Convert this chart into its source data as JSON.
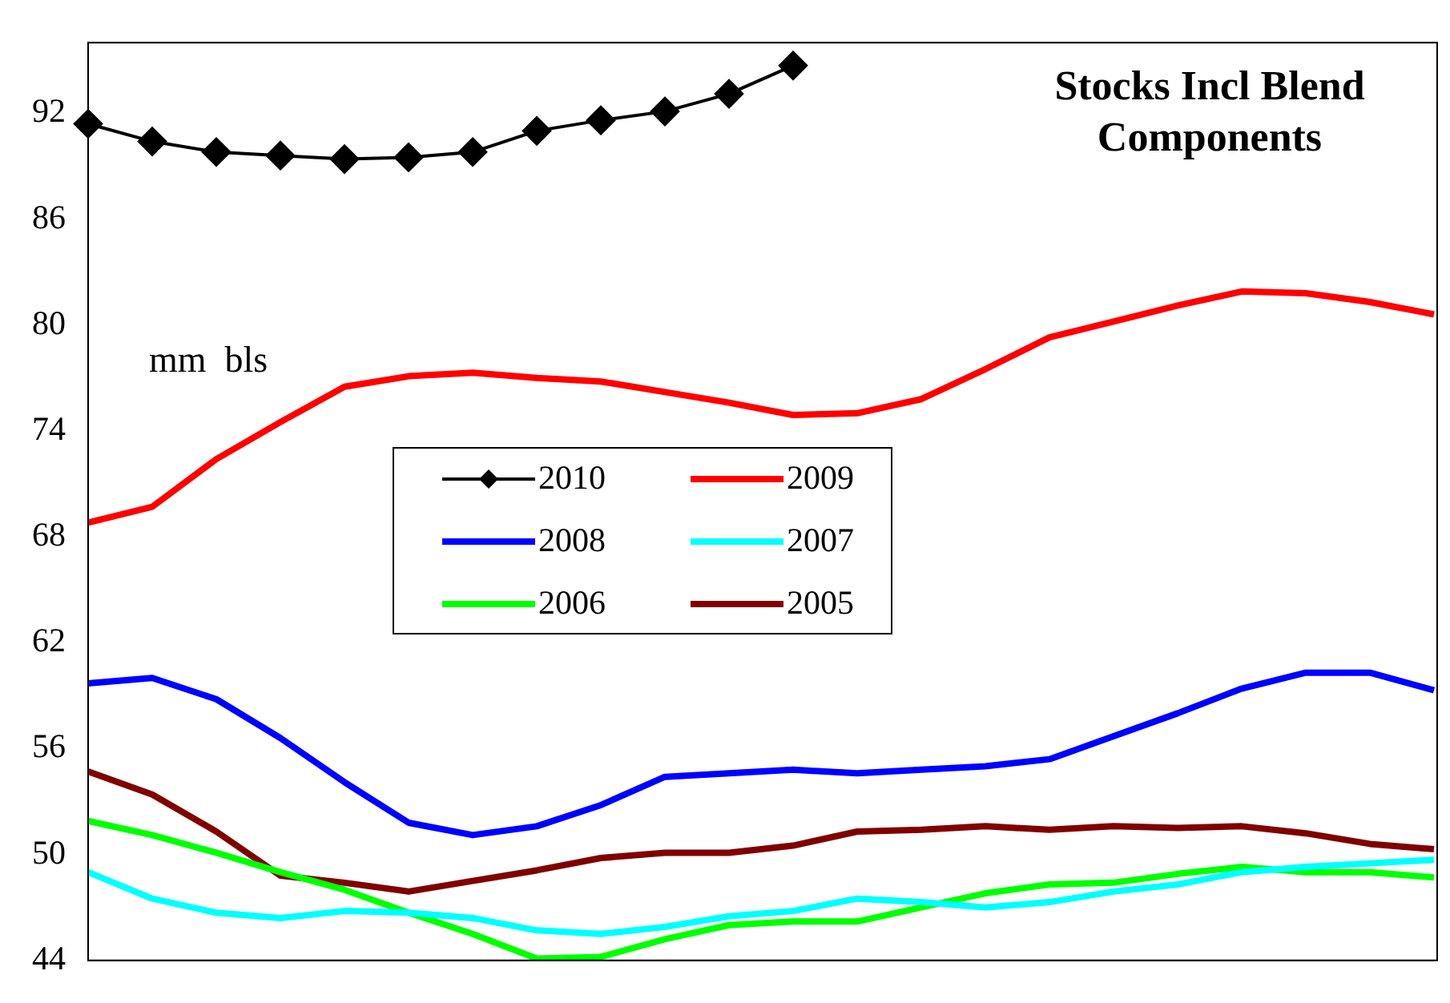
{
  "chart_data": {
    "type": "line",
    "title": "Stocks Incl Blend Components",
    "annotations": [
      "mm  bls"
    ],
    "categories": [
      null,
      null,
      null,
      null,
      null,
      null,
      null,
      null,
      null,
      null,
      null,
      null,
      null,
      null,
      null,
      null,
      null,
      null,
      null,
      null,
      null,
      null
    ],
    "series": [
      {
        "name": "2010",
        "color": "#000000",
        "marker": "diamond",
        "values": [
          91.4,
          90.4,
          89.8,
          89.6,
          89.4,
          89.5,
          89.8,
          91.0,
          91.6,
          92.1,
          93.1,
          94.7,
          null,
          null,
          null,
          null,
          null,
          null,
          null,
          null,
          null,
          null
        ]
      },
      {
        "name": "2009",
        "color": "#ff0000",
        "values": [
          68.8,
          69.7,
          72.4,
          74.5,
          76.5,
          77.1,
          77.3,
          77.0,
          76.8,
          76.2,
          75.6,
          74.9,
          75.0,
          75.8,
          77.5,
          79.3,
          80.2,
          81.1,
          81.9,
          81.8,
          81.3,
          80.6
        ]
      },
      {
        "name": "2008",
        "color": "#0000ff",
        "values": [
          59.7,
          60.0,
          58.8,
          56.6,
          54.1,
          51.8,
          51.1,
          51.6,
          52.8,
          54.4,
          54.6,
          54.8,
          54.6,
          54.8,
          55.0,
          55.4,
          56.7,
          58.0,
          59.4,
          60.3,
          60.3,
          59.3
        ]
      },
      {
        "name": "2007",
        "color": "#00ffff",
        "values": [
          49.0,
          47.5,
          46.7,
          46.4,
          46.8,
          46.7,
          46.4,
          45.7,
          45.5,
          45.9,
          46.5,
          46.8,
          47.5,
          47.3,
          47.0,
          47.3,
          47.9,
          48.3,
          49.0,
          49.3,
          49.5,
          49.7
        ]
      },
      {
        "name": "2006",
        "color": "#00ff00",
        "values": [
          51.9,
          51.1,
          50.1,
          49.0,
          48.0,
          46.7,
          45.5,
          44.1,
          44.2,
          45.2,
          46.0,
          46.2,
          46.2,
          47.0,
          47.8,
          48.3,
          48.4,
          48.9,
          49.3,
          49.0,
          49.0,
          48.7
        ]
      },
      {
        "name": "2005",
        "color": "#800000",
        "values": [
          54.7,
          53.4,
          51.3,
          48.8,
          48.4,
          47.9,
          48.5,
          49.1,
          49.8,
          50.1,
          50.1,
          50.5,
          51.3,
          51.4,
          51.6,
          51.4,
          51.6,
          51.5,
          51.6,
          51.2,
          50.6,
          50.3
        ]
      }
    ],
    "ylim": [
      44,
      96
    ],
    "yticks": [
      44,
      50,
      56,
      62,
      68,
      74,
      80,
      86,
      92
    ],
    "grid": false,
    "legend": "center"
  }
}
